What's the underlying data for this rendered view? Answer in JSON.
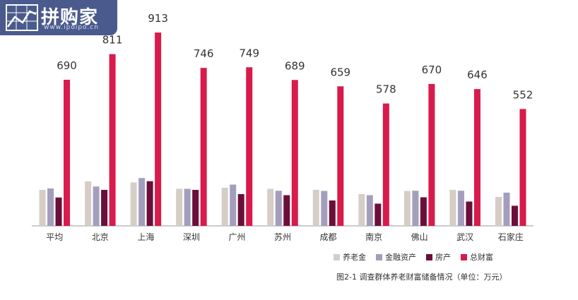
{
  "logo": {
    "text": "拼购家",
    "url": "www.ipoipo.cn"
  },
  "colors": {
    "pension": "#d6cdc6",
    "financial": "#a49ebd",
    "housing": "#6b0f3a",
    "total": "#d81b4b"
  },
  "chart_data": {
    "type": "bar",
    "categories": [
      "平均",
      "北京",
      "上海",
      "深圳",
      "广州",
      "苏州",
      "成都",
      "南京",
      "佛山",
      "武汉",
      "石家庄"
    ],
    "series": [
      {
        "name": "养老金",
        "key": "pension",
        "values": [
          170,
          210,
          205,
          175,
          180,
          175,
          170,
          150,
          165,
          170,
          137
        ]
      },
      {
        "name": "金融资产",
        "key": "financial",
        "values": [
          177,
          186,
          226,
          175,
          195,
          166,
          165,
          145,
          166,
          166,
          157
        ]
      },
      {
        "name": "房产",
        "key": "housing",
        "values": [
          134,
          170,
          211,
          170,
          150,
          145,
          120,
          105,
          135,
          115,
          95
        ]
      },
      {
        "name": "总财富",
        "key": "total",
        "values": [
          690,
          811,
          913,
          746,
          749,
          689,
          659,
          578,
          670,
          646,
          552
        ]
      }
    ],
    "data_labels_series": "总财富",
    "ylim": [
      0,
      1000
    ],
    "xlabel": "",
    "ylabel": "",
    "legend_position": "bottom-right"
  },
  "caption": "图2-1  调查群体养老财富储备情况（单位：万元）"
}
